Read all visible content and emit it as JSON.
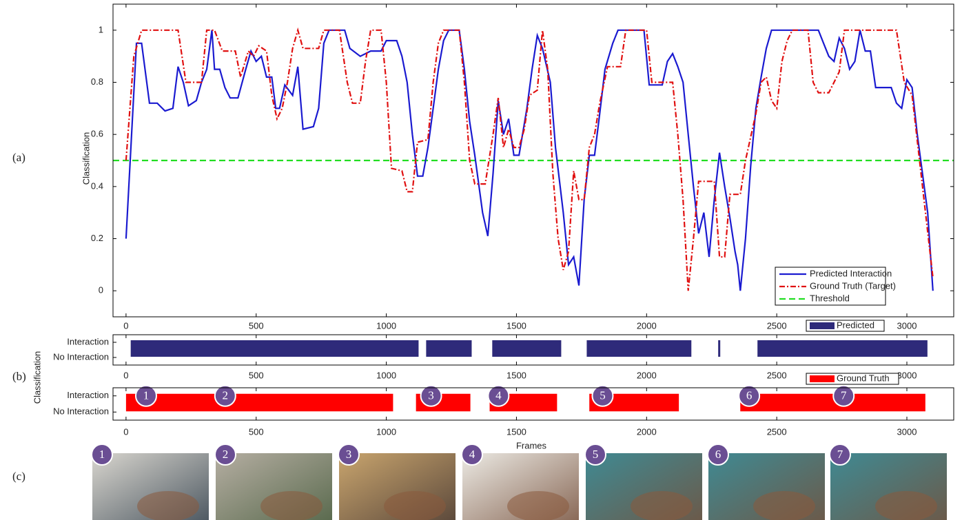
{
  "figure": {
    "panel_labels": [
      "(a)",
      "(b)",
      "(c)"
    ],
    "photos": [
      "1",
      "2",
      "3",
      "4",
      "5",
      "6",
      "7"
    ]
  },
  "chart_data": [
    {
      "type": "line",
      "ylabel": "Classification",
      "xlim": [
        -50,
        3180
      ],
      "xticks": [
        0,
        500,
        1000,
        1500,
        2000,
        2500,
        3000
      ],
      "ylim": [
        -0.1,
        1.1
      ],
      "yticks": [
        0,
        0.2,
        0.4,
        0.6,
        0.8,
        1
      ],
      "legend": "lower right",
      "series": [
        {
          "name": "Predicted Interaction",
          "color": "#1a1ad0",
          "style": "solid",
          "x": [
            0,
            40,
            60,
            90,
            120,
            150,
            180,
            200,
            220,
            240,
            270,
            290,
            310,
            330,
            340,
            360,
            380,
            400,
            430,
            460,
            480,
            500,
            520,
            540,
            560,
            575,
            590,
            610,
            640,
            660,
            680,
            720,
            740,
            760,
            780,
            840,
            860,
            900,
            940,
            980,
            1000,
            1040,
            1060,
            1080,
            1100,
            1120,
            1140,
            1160,
            1180,
            1200,
            1220,
            1240,
            1280,
            1300,
            1320,
            1340,
            1370,
            1390,
            1410,
            1430,
            1450,
            1470,
            1490,
            1510,
            1540,
            1560,
            1580,
            1600,
            1630,
            1650,
            1680,
            1700,
            1720,
            1740,
            1760,
            1780,
            1800,
            1820,
            1840,
            1870,
            1890,
            1990,
            2010,
            2060,
            2080,
            2100,
            2120,
            2140,
            2160,
            2180,
            2200,
            2220,
            2240,
            2260,
            2280,
            2300,
            2320,
            2340,
            2350,
            2360,
            2380,
            2400,
            2420,
            2440,
            2460,
            2480,
            2660,
            2680,
            2700,
            2720,
            2740,
            2760,
            2780,
            2800,
            2820,
            2840,
            2860,
            2880,
            2900,
            2940,
            2960,
            2980,
            3000,
            3020,
            3040,
            3080,
            3100
          ],
          "values": [
            0.2,
            0.95,
            0.95,
            0.72,
            0.72,
            0.69,
            0.7,
            0.86,
            0.8,
            0.71,
            0.73,
            0.8,
            0.85,
            1,
            0.85,
            0.85,
            0.78,
            0.74,
            0.74,
            0.85,
            0.92,
            0.88,
            0.9,
            0.82,
            0.82,
            0.7,
            0.7,
            0.79,
            0.75,
            0.86,
            0.62,
            0.63,
            0.7,
            0.95,
            1,
            1,
            0.93,
            0.9,
            0.92,
            0.92,
            0.96,
            0.96,
            0.9,
            0.8,
            0.6,
            0.44,
            0.44,
            0.55,
            0.7,
            0.85,
            0.96,
            1,
            1,
            0.85,
            0.65,
            0.52,
            0.3,
            0.21,
            0.45,
            0.73,
            0.6,
            0.66,
            0.52,
            0.52,
            0.7,
            0.85,
            0.98,
            0.93,
            0.8,
            0.55,
            0.3,
            0.1,
            0.13,
            0.02,
            0.35,
            0.52,
            0.52,
            0.68,
            0.85,
            0.95,
            1,
            1,
            0.79,
            0.79,
            0.88,
            0.91,
            0.86,
            0.8,
            0.6,
            0.4,
            0.22,
            0.3,
            0.13,
            0.35,
            0.53,
            0.4,
            0.28,
            0.15,
            0.1,
            0,
            0.2,
            0.48,
            0.7,
            0.82,
            0.93,
            1,
            1,
            0.95,
            0.9,
            0.88,
            0.97,
            0.93,
            0.85,
            0.88,
            1,
            0.92,
            0.92,
            0.78,
            0.78,
            0.78,
            0.72,
            0.7,
            0.81,
            0.78,
            0.6,
            0.3,
            0
          ]
        },
        {
          "name": "Ground Truth (Target)",
          "color": "#e01010",
          "style": "dashdot",
          "x": [
            0,
            30,
            60,
            200,
            230,
            290,
            310,
            340,
            370,
            420,
            440,
            470,
            490,
            510,
            540,
            560,
            580,
            600,
            620,
            640,
            660,
            680,
            740,
            760,
            820,
            850,
            870,
            900,
            920,
            940,
            980,
            1000,
            1020,
            1060,
            1080,
            1100,
            1120,
            1160,
            1180,
            1200,
            1220,
            1280,
            1300,
            1320,
            1340,
            1380,
            1410,
            1430,
            1450,
            1470,
            1490,
            1510,
            1530,
            1550,
            1580,
            1600,
            1620,
            1640,
            1660,
            1680,
            1700,
            1720,
            1740,
            1760,
            1780,
            1800,
            1820,
            1850,
            1900,
            1920,
            2000,
            2020,
            2100,
            2120,
            2140,
            2160,
            2180,
            2200,
            2260,
            2280,
            2300,
            2320,
            2360,
            2380,
            2420,
            2440,
            2460,
            2480,
            2500,
            2520,
            2540,
            2560,
            2620,
            2640,
            2660,
            2700,
            2720,
            2740,
            2760,
            2960,
            2990,
            3020,
            3060,
            3100
          ],
          "values": [
            0.5,
            0.9,
            1,
            1,
            0.8,
            0.8,
            1,
            1,
            0.92,
            0.92,
            0.82,
            0.92,
            0.9,
            0.94,
            0.92,
            0.75,
            0.66,
            0.7,
            0.8,
            0.93,
            1,
            0.93,
            0.93,
            1,
            1,
            0.8,
            0.72,
            0.72,
            0.88,
            1,
            1,
            0.8,
            0.47,
            0.46,
            0.38,
            0.38,
            0.57,
            0.58,
            0.8,
            0.95,
            1,
            1,
            0.8,
            0.5,
            0.41,
            0.41,
            0.6,
            0.74,
            0.55,
            0.62,
            0.55,
            0.55,
            0.62,
            0.75,
            0.77,
            1,
            0.85,
            0.45,
            0.2,
            0.08,
            0.15,
            0.46,
            0.35,
            0.35,
            0.55,
            0.6,
            0.72,
            0.86,
            0.86,
            1,
            1,
            0.8,
            0.8,
            0.6,
            0.35,
            0,
            0.2,
            0.42,
            0.42,
            0.13,
            0.13,
            0.37,
            0.37,
            0.5,
            0.68,
            0.8,
            0.82,
            0.73,
            0.7,
            0.88,
            0.96,
            1,
            1,
            0.8,
            0.76,
            0.76,
            0.8,
            0.84,
            1,
            1,
            0.8,
            0.75,
            0.4,
            0.05
          ]
        }
      ],
      "threshold": {
        "name": "Threshold",
        "color": "#22dd22",
        "value": 0.5
      }
    },
    {
      "type": "interval",
      "ylabel": "Classification",
      "categories": [
        "Interaction",
        "No Interaction"
      ],
      "xlim": [
        -50,
        3180
      ],
      "xticks": [
        0,
        500,
        1000,
        1500,
        2000,
        2500,
        3000
      ],
      "legend": "upper right",
      "series": [
        {
          "name": "Predicted",
          "color": "#2e2a7a",
          "segments": [
            [
              18,
              1124
            ],
            [
              1153,
              1328
            ],
            [
              1407,
              1672
            ],
            [
              1770,
              2172
            ],
            [
              2275,
              2283
            ],
            [
              2426,
              3079
            ]
          ]
        }
      ]
    },
    {
      "type": "interval",
      "xlabel": "Frames",
      "categories": [
        "Interaction",
        "No Interaction"
      ],
      "xlim": [
        -50,
        3180
      ],
      "xticks": [
        0,
        500,
        1000,
        1500,
        2000,
        2500,
        3000
      ],
      "legend": "upper right",
      "series": [
        {
          "name": "Ground Truth",
          "color": "#ff0000",
          "segments": [
            [
              0,
              1026
            ],
            [
              1114,
              1323
            ],
            [
              1397,
              1656
            ],
            [
              1780,
              2124
            ],
            [
              2360,
              3071
            ]
          ]
        }
      ],
      "markers": [
        {
          "label": "1",
          "x": 77
        },
        {
          "label": "2",
          "x": 381
        },
        {
          "label": "3",
          "x": 1172
        },
        {
          "label": "4",
          "x": 1431
        },
        {
          "label": "5",
          "x": 1831
        },
        {
          "label": "6",
          "x": 2394
        },
        {
          "label": "7",
          "x": 2757
        }
      ]
    }
  ]
}
